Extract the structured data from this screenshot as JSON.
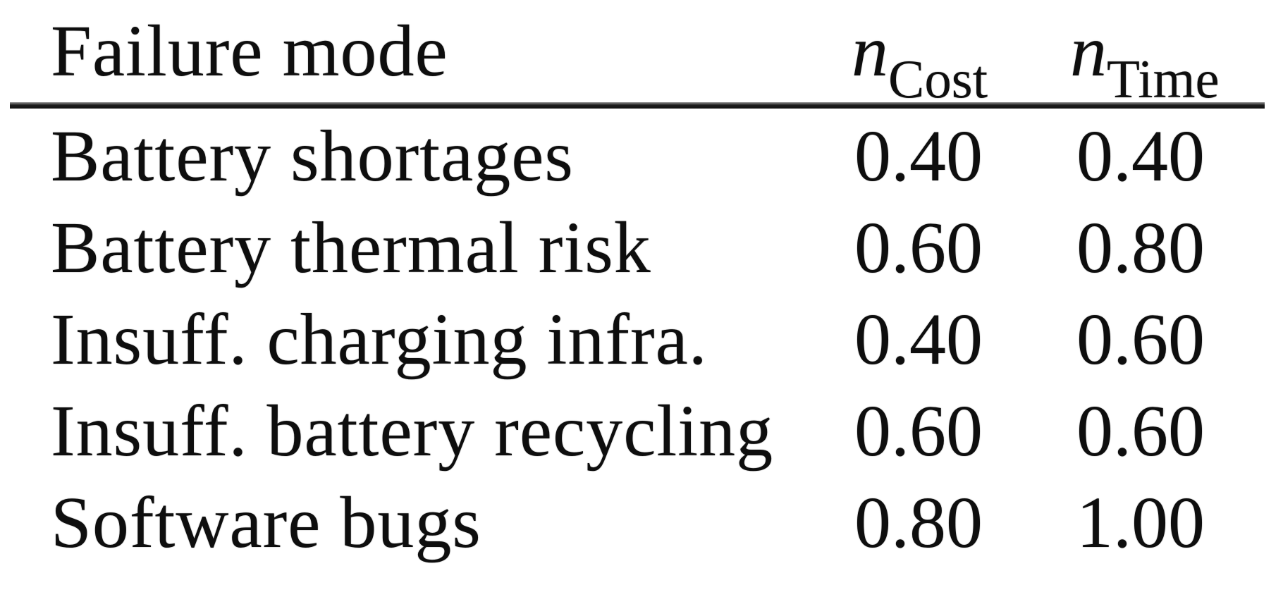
{
  "table": {
    "header": {
      "failure_mode_label": "Failure mode",
      "cost_column": {
        "symbol": "n",
        "subscript": "Cost"
      },
      "time_column": {
        "symbol": "n",
        "subscript": "Time"
      }
    },
    "rows": [
      {
        "failure_mode": "Battery shortages",
        "n_cost": "0.40",
        "n_time": "0.40"
      },
      {
        "failure_mode": "Battery thermal risk",
        "n_cost": "0.60",
        "n_time": "0.80"
      },
      {
        "failure_mode": "Insuff. charging infra.",
        "n_cost": "0.40",
        "n_time": "0.60"
      },
      {
        "failure_mode": "Insuff. battery recycling",
        "n_cost": "0.60",
        "n_time": "0.60"
      },
      {
        "failure_mode": "Software bugs",
        "n_cost": "0.80",
        "n_time": "1.00"
      }
    ]
  },
  "colors": {
    "background": "#ffffff",
    "text": "#0e0e0e",
    "rule": "#1b1b1b"
  }
}
